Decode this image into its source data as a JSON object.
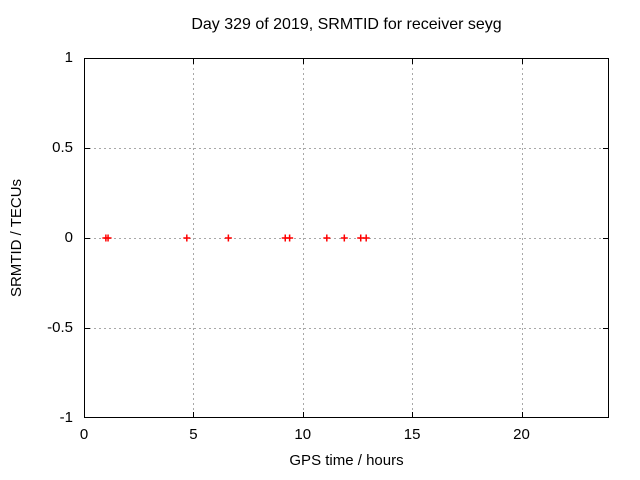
{
  "chart_data": {
    "type": "scatter",
    "title": "Day 329 of 2019, SRMTID for receiver seyg",
    "xlabel": "GPS time / hours",
    "ylabel": "SRMTID / TECUs",
    "xlim": [
      0,
      24
    ],
    "ylim": [
      -1,
      1
    ],
    "xtick_values": [
      0,
      5,
      10,
      15,
      20
    ],
    "xtick_labels": [
      "0",
      "5",
      "10",
      "15",
      "20"
    ],
    "ytick_values": [
      1,
      0.5,
      0,
      -0.5,
      -1
    ],
    "ytick_labels": [
      "1",
      "0.5",
      "0",
      "-0.5",
      "-1"
    ],
    "grid": true,
    "grid_style": "dashed",
    "legend_position": "none",
    "colors": {
      "background": "#ffffff",
      "text": "#000000",
      "border": "#000000",
      "grid": "#a8a8a8",
      "marker": "#ff0000"
    },
    "series": [
      {
        "name": "SRMTID",
        "marker": "plus",
        "color": "#ff0000",
        "x": [
          1.0,
          1.1,
          4.7,
          6.6,
          9.2,
          9.4,
          11.1,
          11.9,
          12.65,
          12.9
        ],
        "y": [
          0,
          0,
          0,
          0,
          0,
          0,
          0,
          0,
          0,
          0
        ]
      }
    ]
  }
}
